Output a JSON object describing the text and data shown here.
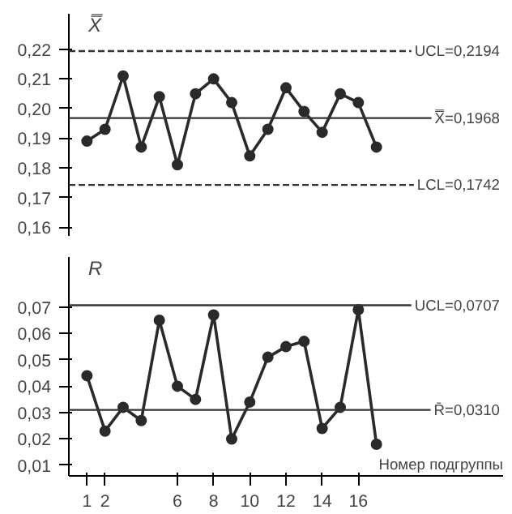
{
  "chart_data": [
    {
      "type": "line",
      "ylabel": "X̿",
      "x": [
        1,
        2,
        3,
        4,
        5,
        6,
        7,
        8,
        9,
        10,
        11,
        12,
        13,
        14,
        15,
        16,
        17
      ],
      "series": [
        {
          "color": "#2a2a2a",
          "values": [
            0.189,
            0.193,
            0.211,
            0.187,
            0.204,
            0.181,
            0.205,
            0.21,
            0.202,
            0.184,
            0.193,
            0.207,
            0.199,
            0.192,
            0.205,
            0.202,
            0.187
          ]
        }
      ],
      "xlim": [
        0,
        24
      ],
      "ylim": [
        0.157,
        0.232
      ],
      "yticks": [
        {
          "value": 0.16,
          "label": "0,16"
        },
        {
          "value": 0.17,
          "label": "0,17"
        },
        {
          "value": 0.18,
          "label": "0,18"
        },
        {
          "value": 0.19,
          "label": "0,19"
        },
        {
          "value": 0.2,
          "label": "0,20"
        },
        {
          "value": 0.21,
          "label": "0,21"
        },
        {
          "value": 0.22,
          "label": "0,22"
        }
      ],
      "ref_lines": [
        {
          "axis": "y",
          "value": 0.2194,
          "label": "UCL=0,2194",
          "line_style": "dashed"
        },
        {
          "axis": "y",
          "value": 0.1968,
          "label": "X̿=0,1968",
          "line_style": "solid"
        },
        {
          "axis": "y",
          "value": 0.1742,
          "label": "LCL=0,1742",
          "line_style": "dashed"
        }
      ],
      "tick_labels": "y",
      "grid": false,
      "marker": "circle",
      "line_style": "solid"
    },
    {
      "type": "line",
      "ylabel": "R",
      "xlabel": "Номер подгруппы",
      "x": [
        1,
        2,
        3,
        4,
        5,
        6,
        7,
        8,
        9,
        10,
        11,
        12,
        13,
        14,
        15,
        16,
        17
      ],
      "series": [
        {
          "color": "#2a2a2a",
          "values": [
            0.044,
            0.023,
            0.032,
            0.027,
            0.065,
            0.04,
            0.035,
            0.067,
            0.02,
            0.034,
            0.051,
            0.055,
            0.057,
            0.024,
            0.032,
            0.069,
            0.018
          ]
        }
      ],
      "xlim": [
        0,
        24
      ],
      "ylim": [
        0.006,
        0.089
      ],
      "xticks": [
        1,
        2,
        {
          "value": 6,
          "label": "6"
        },
        {
          "value": 8,
          "label": "8"
        },
        {
          "value": 10,
          "label": "10"
        },
        {
          "value": 12,
          "label": "12"
        },
        {
          "value": 14,
          "label": "14"
        },
        {
          "value": 16,
          "label": "16"
        }
      ],
      "yticks": [
        {
          "value": 0.01,
          "label": "0,01"
        },
        {
          "value": 0.02,
          "label": "0,02"
        },
        {
          "value": 0.03,
          "label": "0,03"
        },
        {
          "value": 0.04,
          "label": "0,04"
        },
        {
          "value": 0.05,
          "label": "0,05"
        },
        {
          "value": 0.06,
          "label": "0,06"
        },
        {
          "value": 0.07,
          "label": "0,07"
        }
      ],
      "ref_lines": [
        {
          "axis": "y",
          "value": 0.0707,
          "label": "UCL=0,0707",
          "line_style": "solid"
        },
        {
          "axis": "y",
          "value": 0.031,
          "label": "R̄=0,0310",
          "line_style": "solid"
        }
      ],
      "grid": false,
      "marker": "circle",
      "line_style": "solid"
    }
  ]
}
